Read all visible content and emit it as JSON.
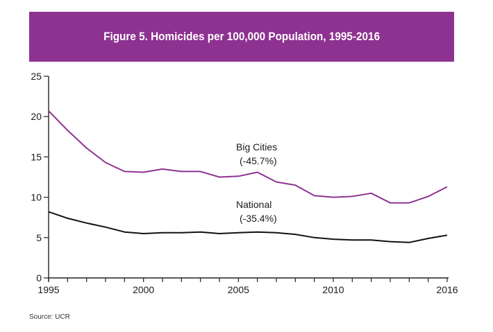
{
  "source": "Source: UCR",
  "colors": {
    "banner": "#8e3291",
    "big_cities": "#8e3291",
    "national": "#111111"
  },
  "chart_data": {
    "type": "line",
    "title": "Figure 5. Homicides per 100,000 Population, 1995-2016",
    "xlabel": "",
    "ylabel": "",
    "x": [
      1995,
      1996,
      1997,
      1998,
      1999,
      2000,
      2001,
      2002,
      2003,
      2004,
      2005,
      2006,
      2007,
      2008,
      2009,
      2010,
      2011,
      2012,
      2013,
      2014,
      2015,
      2016
    ],
    "xticks": [
      "1995",
      "2000",
      "2005",
      "2010",
      "2016"
    ],
    "xtick_values": [
      1995,
      2000,
      2005,
      2010,
      2016
    ],
    "yticks": [
      "0",
      "5",
      "10",
      "15",
      "20",
      "25"
    ],
    "ylim": [
      0,
      25
    ],
    "grid": false,
    "series": [
      {
        "key": "big_cities",
        "label_line1": "Big Cities",
        "label_line2": "(-45.7%)",
        "values": [
          20.7,
          18.3,
          16.1,
          14.3,
          13.2,
          13.1,
          13.5,
          13.2,
          13.2,
          12.5,
          12.6,
          13.1,
          11.9,
          11.5,
          10.2,
          10.0,
          10.1,
          10.5,
          9.3,
          9.3,
          10.1,
          11.3
        ]
      },
      {
        "key": "national",
        "label_line1": "National",
        "label_line2": "(-35.4%)",
        "values": [
          8.2,
          7.4,
          6.8,
          6.3,
          5.7,
          5.5,
          5.6,
          5.6,
          5.7,
          5.5,
          5.6,
          5.7,
          5.6,
          5.4,
          5.0,
          4.8,
          4.7,
          4.7,
          4.5,
          4.4,
          4.9,
          5.3
        ]
      }
    ]
  }
}
